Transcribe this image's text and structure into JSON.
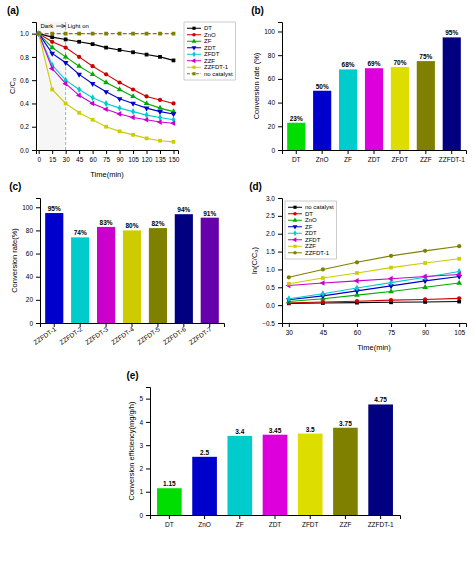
{
  "chart_data": [
    {
      "type": "line",
      "title": "(a)",
      "xlabel": "Time(min)",
      "ylabel": "C/C₀",
      "x": [
        0,
        15,
        30,
        45,
        60,
        75,
        90,
        105,
        120,
        135,
        150
      ],
      "series": [
        {
          "name": "DT",
          "color": "#000000",
          "marker": "square",
          "line_style": "solid",
          "values": [
            1.0,
            0.97,
            0.95,
            0.93,
            0.91,
            0.88,
            0.86,
            0.84,
            0.82,
            0.8,
            0.77
          ]
        },
        {
          "name": "ZnO",
          "color": "#cc0000",
          "marker": "circle",
          "line_style": "solid",
          "values": [
            1.0,
            0.93,
            0.88,
            0.8,
            0.72,
            0.65,
            0.58,
            0.52,
            0.46,
            0.43,
            0.4
          ]
        },
        {
          "name": "ZF",
          "color": "#00aa00",
          "marker": "triangle-up",
          "line_style": "solid",
          "values": [
            1.0,
            0.88,
            0.8,
            0.72,
            0.65,
            0.58,
            0.52,
            0.46,
            0.4,
            0.36,
            0.33
          ]
        },
        {
          "name": "ZDT",
          "color": "#0000cc",
          "marker": "triangle-down",
          "line_style": "solid",
          "values": [
            1.0,
            0.83,
            0.75,
            0.65,
            0.57,
            0.5,
            0.44,
            0.4,
            0.36,
            0.33,
            0.31
          ]
        },
        {
          "name": "ZFDT",
          "color": "#00cccc",
          "marker": "diamond",
          "line_style": "solid",
          "values": [
            1.0,
            0.73,
            0.6,
            0.52,
            0.45,
            0.4,
            0.36,
            0.33,
            0.3,
            0.28,
            0.26
          ]
        },
        {
          "name": "ZZF",
          "color": "#cc00cc",
          "marker": "triangle-left",
          "line_style": "solid",
          "values": [
            1.0,
            0.7,
            0.57,
            0.47,
            0.4,
            0.35,
            0.31,
            0.28,
            0.26,
            0.24,
            0.23
          ]
        },
        {
          "name": "ZZFDT-1",
          "color": "#cccc00",
          "marker": "square",
          "line_style": "solid",
          "values": [
            1.0,
            0.52,
            0.4,
            0.32,
            0.26,
            0.2,
            0.16,
            0.13,
            0.1,
            0.08,
            0.07
          ]
        },
        {
          "name": "no catalyst",
          "color": "#808000",
          "marker": "square",
          "line_style": "dashed",
          "values": [
            1.0,
            1.0,
            1.0,
            1.0,
            1.0,
            1.0,
            1.0,
            1.0,
            1.0,
            1.0,
            1.0
          ]
        }
      ],
      "xlim": [
        -3,
        155
      ],
      "ylim": [
        0,
        1.1
      ],
      "xticks": [
        0,
        15,
        30,
        45,
        60,
        75,
        90,
        105,
        120,
        135,
        150
      ],
      "yticks": [
        {
          "value": 0,
          "label": "0.0"
        },
        0.2,
        0.4,
        0.6,
        0.8,
        {
          "value": 1,
          "label": "1.0"
        }
      ],
      "annotations": [
        {
          "text": "Dark",
          "x": 2,
          "y": 1.065,
          "span": [
            0,
            30
          ]
        },
        {
          "text": "Light on",
          "x": 32,
          "y": 1.065,
          "arrow": [
            12,
            30
          ]
        }
      ],
      "grid": false,
      "legend": "right"
    },
    {
      "type": "bar",
      "title": "(b)",
      "ylabel": "Conversion rate (%)",
      "categories": [
        "DT",
        "ZnO",
        "ZF",
        "ZDT",
        "ZFDT",
        "ZZF",
        "ZZFDT-1"
      ],
      "values": [
        23,
        50,
        68,
        69,
        70,
        75,
        95
      ],
      "value_labels": [
        "23%",
        "50%",
        "68%",
        "69%",
        "70%",
        "75%",
        "95%"
      ],
      "colors": [
        "#00dd00",
        "#0000cc",
        "#00cccc",
        "#dd00dd",
        "#dddd00",
        "#808000",
        "#000080"
      ],
      "ylim": [
        0,
        108
      ],
      "yticks": [
        0,
        20,
        40,
        60,
        80,
        100
      ],
      "data_labels": true,
      "grid": false
    },
    {
      "type": "bar",
      "title": "(c)",
      "ylabel": "Conversion rate(%)",
      "categories": [
        "ZZFDT-1",
        "ZZFDT-2",
        "ZZFDT-3",
        "ZZFDT-4",
        "ZZFDT-5",
        "ZZFDT-6",
        "ZZFDT-7"
      ],
      "values": [
        95,
        74,
        83,
        80,
        82,
        94,
        91
      ],
      "value_labels": [
        "95%",
        "74%",
        "83%",
        "80%",
        "82%",
        "94%",
        "91%"
      ],
      "colors": [
        "#0000cc",
        "#00cccc",
        "#cc00cc",
        "#cccc00",
        "#808000",
        "#000080",
        "#6600aa"
      ],
      "ylim": [
        0,
        108
      ],
      "yticks": [
        0,
        20,
        40,
        60,
        80,
        100
      ],
      "data_labels": true,
      "grid": false
    },
    {
      "type": "line",
      "title": "(d)",
      "xlabel": "Time(min)",
      "ylabel": "ln(C/C₀)",
      "x": [
        30,
        45,
        60,
        75,
        90,
        105
      ],
      "series": [
        {
          "name": "no catalyst",
          "color": "#000000",
          "marker": "square",
          "line_style": "solid",
          "values": [
            0.05,
            0.06,
            0.07,
            0.08,
            0.09,
            0.1
          ]
        },
        {
          "name": "DT",
          "color": "#cc0000",
          "marker": "circle",
          "line_style": "solid",
          "values": [
            0.06,
            0.09,
            0.11,
            0.14,
            0.16,
            0.19
          ]
        },
        {
          "name": "ZnO",
          "color": "#00aa00",
          "marker": "triangle-up",
          "line_style": "solid",
          "values": [
            0.1,
            0.18,
            0.28,
            0.38,
            0.5,
            0.62
          ]
        },
        {
          "name": "ZF",
          "color": "#0000cc",
          "marker": "triangle-down",
          "line_style": "solid",
          "values": [
            0.15,
            0.26,
            0.4,
            0.54,
            0.68,
            0.8
          ]
        },
        {
          "name": "ZDT",
          "color": "#00cccc",
          "marker": "diamond",
          "line_style": "solid",
          "values": [
            0.18,
            0.32,
            0.48,
            0.63,
            0.78,
            0.94
          ]
        },
        {
          "name": "ZFDT",
          "color": "#cc00cc",
          "marker": "triangle-left",
          "line_style": "solid",
          "values": [
            0.55,
            0.62,
            0.68,
            0.74,
            0.8,
            0.86
          ]
        },
        {
          "name": "ZZF",
          "color": "#cccc00",
          "marker": "square",
          "line_style": "solid",
          "values": [
            0.6,
            0.76,
            0.9,
            1.05,
            1.18,
            1.3
          ]
        },
        {
          "name": "ZZFDT-1",
          "color": "#808000",
          "marker": "circle",
          "line_style": "solid",
          "values": [
            0.78,
            1.0,
            1.2,
            1.38,
            1.52,
            1.65
          ]
        }
      ],
      "xlim": [
        27,
        108
      ],
      "ylim": [
        -0.5,
        3.0
      ],
      "xticks": [
        30,
        45,
        60,
        75,
        90,
        105
      ],
      "yticks": [
        {
          "value": -0.5,
          "label": "−0.5"
        },
        {
          "value": 0,
          "label": "0.0"
        },
        0.5,
        {
          "value": 1,
          "label": "1.0"
        },
        1.5,
        {
          "value": 2,
          "label": "2.0"
        },
        2.5,
        {
          "value": 3,
          "label": "3.0"
        }
      ],
      "grid": false,
      "legend": "upper left"
    },
    {
      "type": "bar",
      "title": "(e)",
      "ylabel": "Conversion efficiency(mg/g/h)",
      "categories": [
        "DT",
        "ZnO",
        "ZF",
        "ZDT",
        "ZFDT",
        "ZZF",
        "ZZFDT-1"
      ],
      "values": [
        1.15,
        2.5,
        3.4,
        3.45,
        3.5,
        3.75,
        4.75
      ],
      "colors": [
        "#00dd00",
        "#0000cc",
        "#00cccc",
        "#dd00dd",
        "#dddd00",
        "#808000",
        "#000080"
      ],
      "ylim": [
        0,
        5.5
      ],
      "yticks": [
        0,
        1,
        2,
        3,
        4,
        5
      ],
      "data_labels": true,
      "grid": false
    }
  ]
}
